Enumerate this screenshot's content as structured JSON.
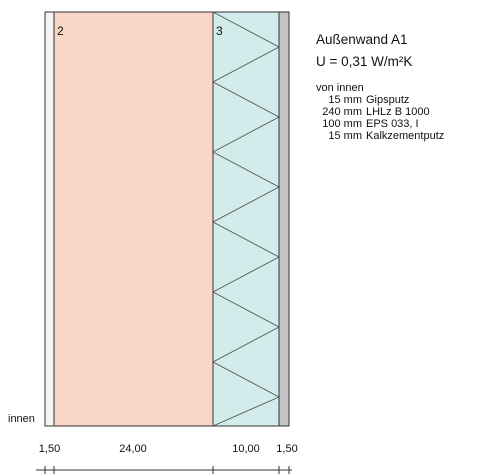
{
  "wall": {
    "title": "Außenwand A1",
    "u_value": "U = 0,31 W/m²K",
    "order_label": "von innen",
    "side_label": "innen",
    "layers": [
      {
        "thickness": "15 mm",
        "material": "Gipsputz",
        "dim": "1,50",
        "number": "",
        "color": "#f4f4f4"
      },
      {
        "thickness": "240 mm",
        "material": "LHLz B 1000",
        "dim": "24,00",
        "number": "2",
        "color": "#f9d6c6"
      },
      {
        "thickness": "100 mm",
        "material": "EPS 033, I",
        "dim": "10,00",
        "number": "3",
        "color": "#d2ecec"
      },
      {
        "thickness": "15 mm",
        "material": "Kalkzementputz",
        "dim": "1,50",
        "number": "",
        "color": "#c4c4c4"
      }
    ]
  }
}
